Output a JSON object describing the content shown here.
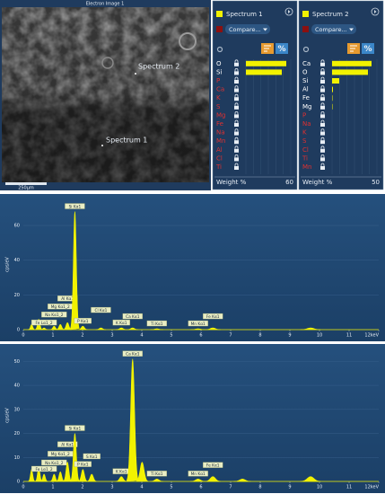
{
  "image": {
    "title": "Electron Image 1",
    "spots": [
      {
        "label": "Spectrum 2"
      },
      {
        "label": "Spectrum 1"
      }
    ],
    "scale_bar": "250µm"
  },
  "panels": [
    {
      "name": "Spectrum 1",
      "compare": "Compare...",
      "weight_label": "Weight %",
      "weight_max": 60,
      "elements": [
        {
          "symbol": "O",
          "value": 54,
          "color": "#ffffff"
        },
        {
          "symbol": "Si",
          "value": 48,
          "color": "#ffffff"
        },
        {
          "symbol": "P",
          "value": null,
          "color": "#e03030"
        },
        {
          "symbol": "Ca",
          "value": null,
          "color": "#e03030"
        },
        {
          "symbol": "K",
          "value": null,
          "color": "#e03030"
        },
        {
          "symbol": "S",
          "value": null,
          "color": "#e03030"
        },
        {
          "symbol": "Mg",
          "value": null,
          "color": "#e03030"
        },
        {
          "symbol": "Fe",
          "value": null,
          "color": "#e03030"
        },
        {
          "symbol": "Na",
          "value": null,
          "color": "#e03030"
        },
        {
          "symbol": "Mn",
          "value": null,
          "color": "#e03030"
        },
        {
          "symbol": "Al",
          "value": null,
          "color": "#e03030"
        },
        {
          "symbol": "Cl",
          "value": null,
          "color": "#e03030"
        },
        {
          "symbol": "Ti",
          "value": null,
          "color": "#e03030"
        }
      ]
    },
    {
      "name": "Spectrum 2",
      "compare": "Compare...",
      "weight_label": "Weight %",
      "weight_max": 50,
      "elements": [
        {
          "symbol": "Ca",
          "value": 44,
          "color": "#ffffff"
        },
        {
          "symbol": "O",
          "value": 40,
          "color": "#ffffff"
        },
        {
          "symbol": "Si",
          "value": 8,
          "color": "#ffffff"
        },
        {
          "symbol": "Al",
          "value": 1,
          "color": "#ffffff"
        },
        {
          "symbol": "Fe",
          "value": 0.5,
          "color": "#ffffff"
        },
        {
          "symbol": "Mg",
          "value": 0.5,
          "color": "#ffffff"
        },
        {
          "symbol": "P",
          "value": null,
          "color": "#e03030"
        },
        {
          "symbol": "Na",
          "value": null,
          "color": "#e03030"
        },
        {
          "symbol": "K",
          "value": null,
          "color": "#e03030"
        },
        {
          "symbol": "S",
          "value": null,
          "color": "#e03030"
        },
        {
          "symbol": "Cl",
          "value": null,
          "color": "#e03030"
        },
        {
          "symbol": "Ti",
          "value": null,
          "color": "#e03030"
        },
        {
          "symbol": "Mn",
          "value": null,
          "color": "#e03030"
        }
      ]
    }
  ],
  "chart_data": [
    {
      "type": "spectrum",
      "ylabel": "cps/eV",
      "color": "#f2f200",
      "xlim": [
        0,
        12
      ],
      "xticks": [
        0,
        1,
        2,
        3,
        4,
        5,
        6,
        7,
        8,
        9,
        10,
        11,
        {
          "value": 12,
          "label": "12keV"
        }
      ],
      "ylim": [
        0,
        75
      ],
      "yticks": [
        0,
        20,
        40,
        60
      ],
      "peaks": [
        {
          "x": 0.28,
          "y": 3
        },
        {
          "x": 0.52,
          "y": 6
        },
        {
          "x": 0.7,
          "y": 1,
          "label": "Fe Lα1_2"
        },
        {
          "x": 1.04,
          "y": 2,
          "label": "Na Kα1_2"
        },
        {
          "x": 1.25,
          "y": 3,
          "label": "Mg Kα1_2"
        },
        {
          "x": 1.49,
          "y": 4,
          "label": "Al Kα1"
        },
        {
          "x": 1.74,
          "y": 68,
          "label": "Si Kα1"
        },
        {
          "x": 2.01,
          "y": 2,
          "label": "P Kα1"
        },
        {
          "x": 2.62,
          "y": 1,
          "label": "Cl Kα1"
        },
        {
          "x": 3.31,
          "y": 1,
          "label": "K Kα1"
        },
        {
          "x": 3.69,
          "y": 1,
          "label": "Ca Kα1"
        },
        {
          "x": 4.51,
          "y": 0.5,
          "label": "Ti Kα1"
        },
        {
          "x": 5.9,
          "y": 0.5,
          "label": "Mn Kα1"
        },
        {
          "x": 6.4,
          "y": 1,
          "label": "Fe Kα1"
        },
        {
          "x": 9.7,
          "y": 1
        }
      ]
    },
    {
      "type": "spectrum",
      "ylabel": "cps/eV",
      "color": "#f2f200",
      "xlim": [
        0,
        12
      ],
      "xticks": [
        0,
        1,
        2,
        3,
        4,
        5,
        6,
        7,
        8,
        9,
        10,
        11,
        {
          "value": 12,
          "label": "12keV"
        }
      ],
      "ylim": [
        0,
        55
      ],
      "yticks": [
        0,
        10,
        20,
        30,
        40,
        50
      ],
      "peaks": [
        {
          "x": 0.28,
          "y": 5
        },
        {
          "x": 0.52,
          "y": 6
        },
        {
          "x": 0.7,
          "y": 3,
          "label": "Fe Lα1_2"
        },
        {
          "x": 1.04,
          "y": 3,
          "label": "Na Kα1_2"
        },
        {
          "x": 1.25,
          "y": 4,
          "label": "Mg Kα1_2"
        },
        {
          "x": 1.49,
          "y": 8,
          "label": "Al Kα1"
        },
        {
          "x": 1.74,
          "y": 20,
          "label": "Si Kα1"
        },
        {
          "x": 2.01,
          "y": 5,
          "label": "P Kα1"
        },
        {
          "x": 2.31,
          "y": 3,
          "label": "S Kα1"
        },
        {
          "x": 3.31,
          "y": 2,
          "label": "K Kα1"
        },
        {
          "x": 3.69,
          "y": 51,
          "label": "Ca Kα1"
        },
        {
          "x": 4.01,
          "y": 8
        },
        {
          "x": 4.51,
          "y": 1,
          "label": "Ti Kα1"
        },
        {
          "x": 5.9,
          "y": 1,
          "label": "Mn Kα1"
        },
        {
          "x": 6.4,
          "y": 2,
          "label": "Fe Kα1"
        },
        {
          "x": 7.4,
          "y": 1
        },
        {
          "x": 9.7,
          "y": 2
        }
      ]
    }
  ]
}
